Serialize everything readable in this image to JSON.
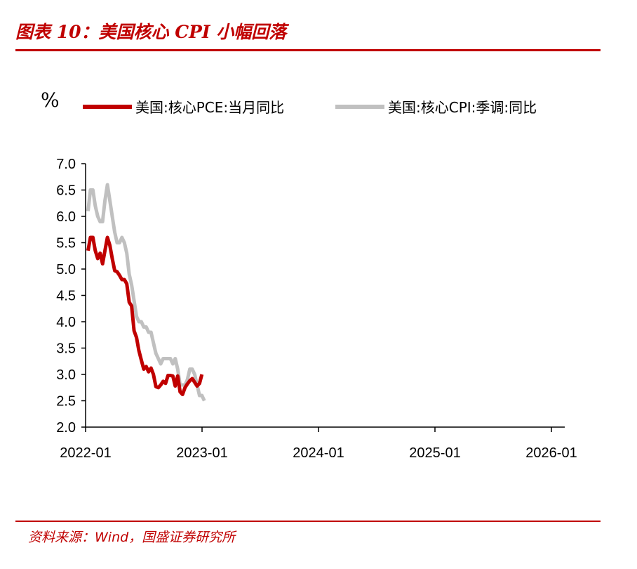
{
  "figure": {
    "title": "图表 10：美国核心 CPI 小幅回落",
    "source": "资料来源：Wind，国盛证券研究所"
  },
  "chart_data": {
    "type": "line",
    "title": "美国核心 CPI 小幅回落",
    "ylabel": "%",
    "xlabel": "",
    "ylim": [
      2.0,
      7.0
    ],
    "yticks": [
      "7.0",
      "6.5",
      "6.0",
      "5.5",
      "5.0",
      "4.5",
      "4.0",
      "3.5",
      "3.0",
      "2.5",
      "2.0"
    ],
    "xtick_labels": [
      "2022-01",
      "2023-01",
      "2024-01",
      "2025-01",
      "2026-01"
    ],
    "x_start": "2022-01",
    "x_end": "2026-01",
    "legend_position": "top",
    "series": [
      {
        "name": "美国:核心PCE:当月同比",
        "color": "#c00000",
        "start_index": 0,
        "values": [
          5.35,
          5.6,
          5.6,
          5.35,
          5.2,
          5.3,
          5.1,
          5.35,
          5.6,
          5.45,
          5.2,
          4.97,
          4.95,
          4.88,
          4.8,
          4.8,
          4.72,
          4.37,
          4.3,
          3.83,
          3.7,
          3.45,
          3.27,
          3.1,
          3.15,
          3.05,
          3.12,
          3.0,
          2.77,
          2.75,
          2.8,
          2.87,
          2.83,
          2.98,
          2.98,
          2.97,
          2.78,
          2.97,
          2.67,
          2.62,
          2.75,
          2.82,
          2.88,
          2.92,
          2.85,
          2.78,
          2.83,
          3.0
        ]
      },
      {
        "name": "美国:核心CPI:季调:同比",
        "color": "#c0c0c0",
        "start_index": 0,
        "values": [
          6.1,
          6.5,
          6.5,
          6.2,
          6.0,
          5.9,
          5.9,
          6.3,
          6.6,
          6.3,
          6.0,
          5.7,
          5.5,
          5.5,
          5.6,
          5.5,
          5.3,
          4.9,
          4.7,
          4.4,
          4.1,
          4.0,
          4.0,
          3.9,
          3.9,
          3.8,
          3.8,
          3.6,
          3.4,
          3.3,
          3.2,
          3.3,
          3.3,
          3.3,
          3.3,
          3.2,
          3.3,
          3.1,
          2.8,
          2.8,
          2.8,
          2.9,
          3.1,
          3.1,
          3.0,
          2.8,
          2.6,
          2.6,
          2.5
        ]
      }
    ]
  }
}
